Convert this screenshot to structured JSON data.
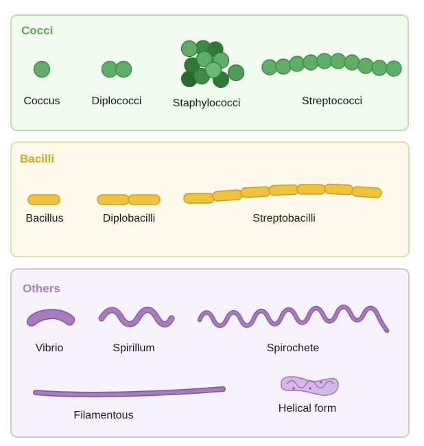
{
  "colors": {
    "cocci_bg": "#f1fbef",
    "cocci_border": "#b9deb0",
    "cocci_title": "#5ea85a",
    "cocci_fill": "#5fae66",
    "cocci_dark": "#2f7a37",
    "cocci_stroke": "#3f8a45",
    "bacilli_bg": "#fdfaec",
    "bacilli_border": "#ecd9a6",
    "bacilli_title": "#d4a81d",
    "bacilli_fill": "#f0c33a",
    "bacilli_stroke": "#c79a17",
    "others_bg": "#f6f3fd",
    "others_border": "#cdc2e8",
    "others_title": "#a57fc2",
    "others_fill": "#a87ac2",
    "others_stroke": "#7e5599"
  },
  "cocci": {
    "title": "Cocci",
    "labels": {
      "coccus": "Coccus",
      "diplococci": "Diplococci",
      "staphylococci": "Staphylococci",
      "streptococci": "Streptococci"
    }
  },
  "bacilli": {
    "title": "Bacilli",
    "labels": {
      "bacillus": "Bacillus",
      "diplobacilli": "Diplobacilli",
      "streptobacilli": "Streptobacilli"
    }
  },
  "others": {
    "title": "Others",
    "labels": {
      "vibrio": "Vibrio",
      "spirillum": "Spirillum",
      "spirochete": "Spirochete",
      "filamentous": "Filamentous",
      "helical": "Helical form"
    }
  },
  "icons": [
    "coccus-icon",
    "diplococci-icon",
    "staphylococci-icon",
    "streptococci-icon",
    "bacillus-icon",
    "diplobacilli-icon",
    "streptobacilli-icon",
    "vibrio-icon",
    "spirillum-icon",
    "spirochete-icon",
    "filamentous-icon",
    "helical-form-icon"
  ]
}
